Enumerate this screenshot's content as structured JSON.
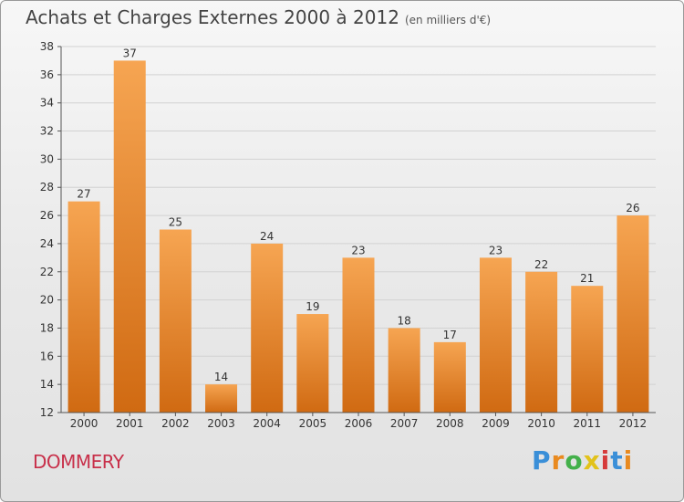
{
  "header": {
    "title": "Achats et Charges Externes 2000 à 2012",
    "subtitle": "(en milliers d'€)"
  },
  "footer": {
    "town": "DOMMERY",
    "brand": "Proxiti"
  },
  "colors": {
    "bar_light": "#f6a552",
    "bar_dark": "#d06a12",
    "town": "#c8304a"
  },
  "chart_data": {
    "type": "bar",
    "title": "Achats et Charges Externes 2000 à 2012",
    "subtitle": "(en milliers d'€)",
    "xlabel": "",
    "ylabel": "",
    "categories": [
      "2000",
      "2001",
      "2002",
      "2003",
      "2004",
      "2005",
      "2006",
      "2007",
      "2008",
      "2009",
      "2010",
      "2011",
      "2012"
    ],
    "values": [
      27,
      37,
      25,
      14,
      24,
      19,
      23,
      18,
      17,
      23,
      22,
      21,
      26
    ],
    "ylim": [
      12,
      38
    ],
    "yticks": [
      12,
      14,
      16,
      18,
      20,
      22,
      24,
      26,
      28,
      30,
      32,
      34,
      36,
      38
    ],
    "grid": true,
    "legend": "none"
  }
}
